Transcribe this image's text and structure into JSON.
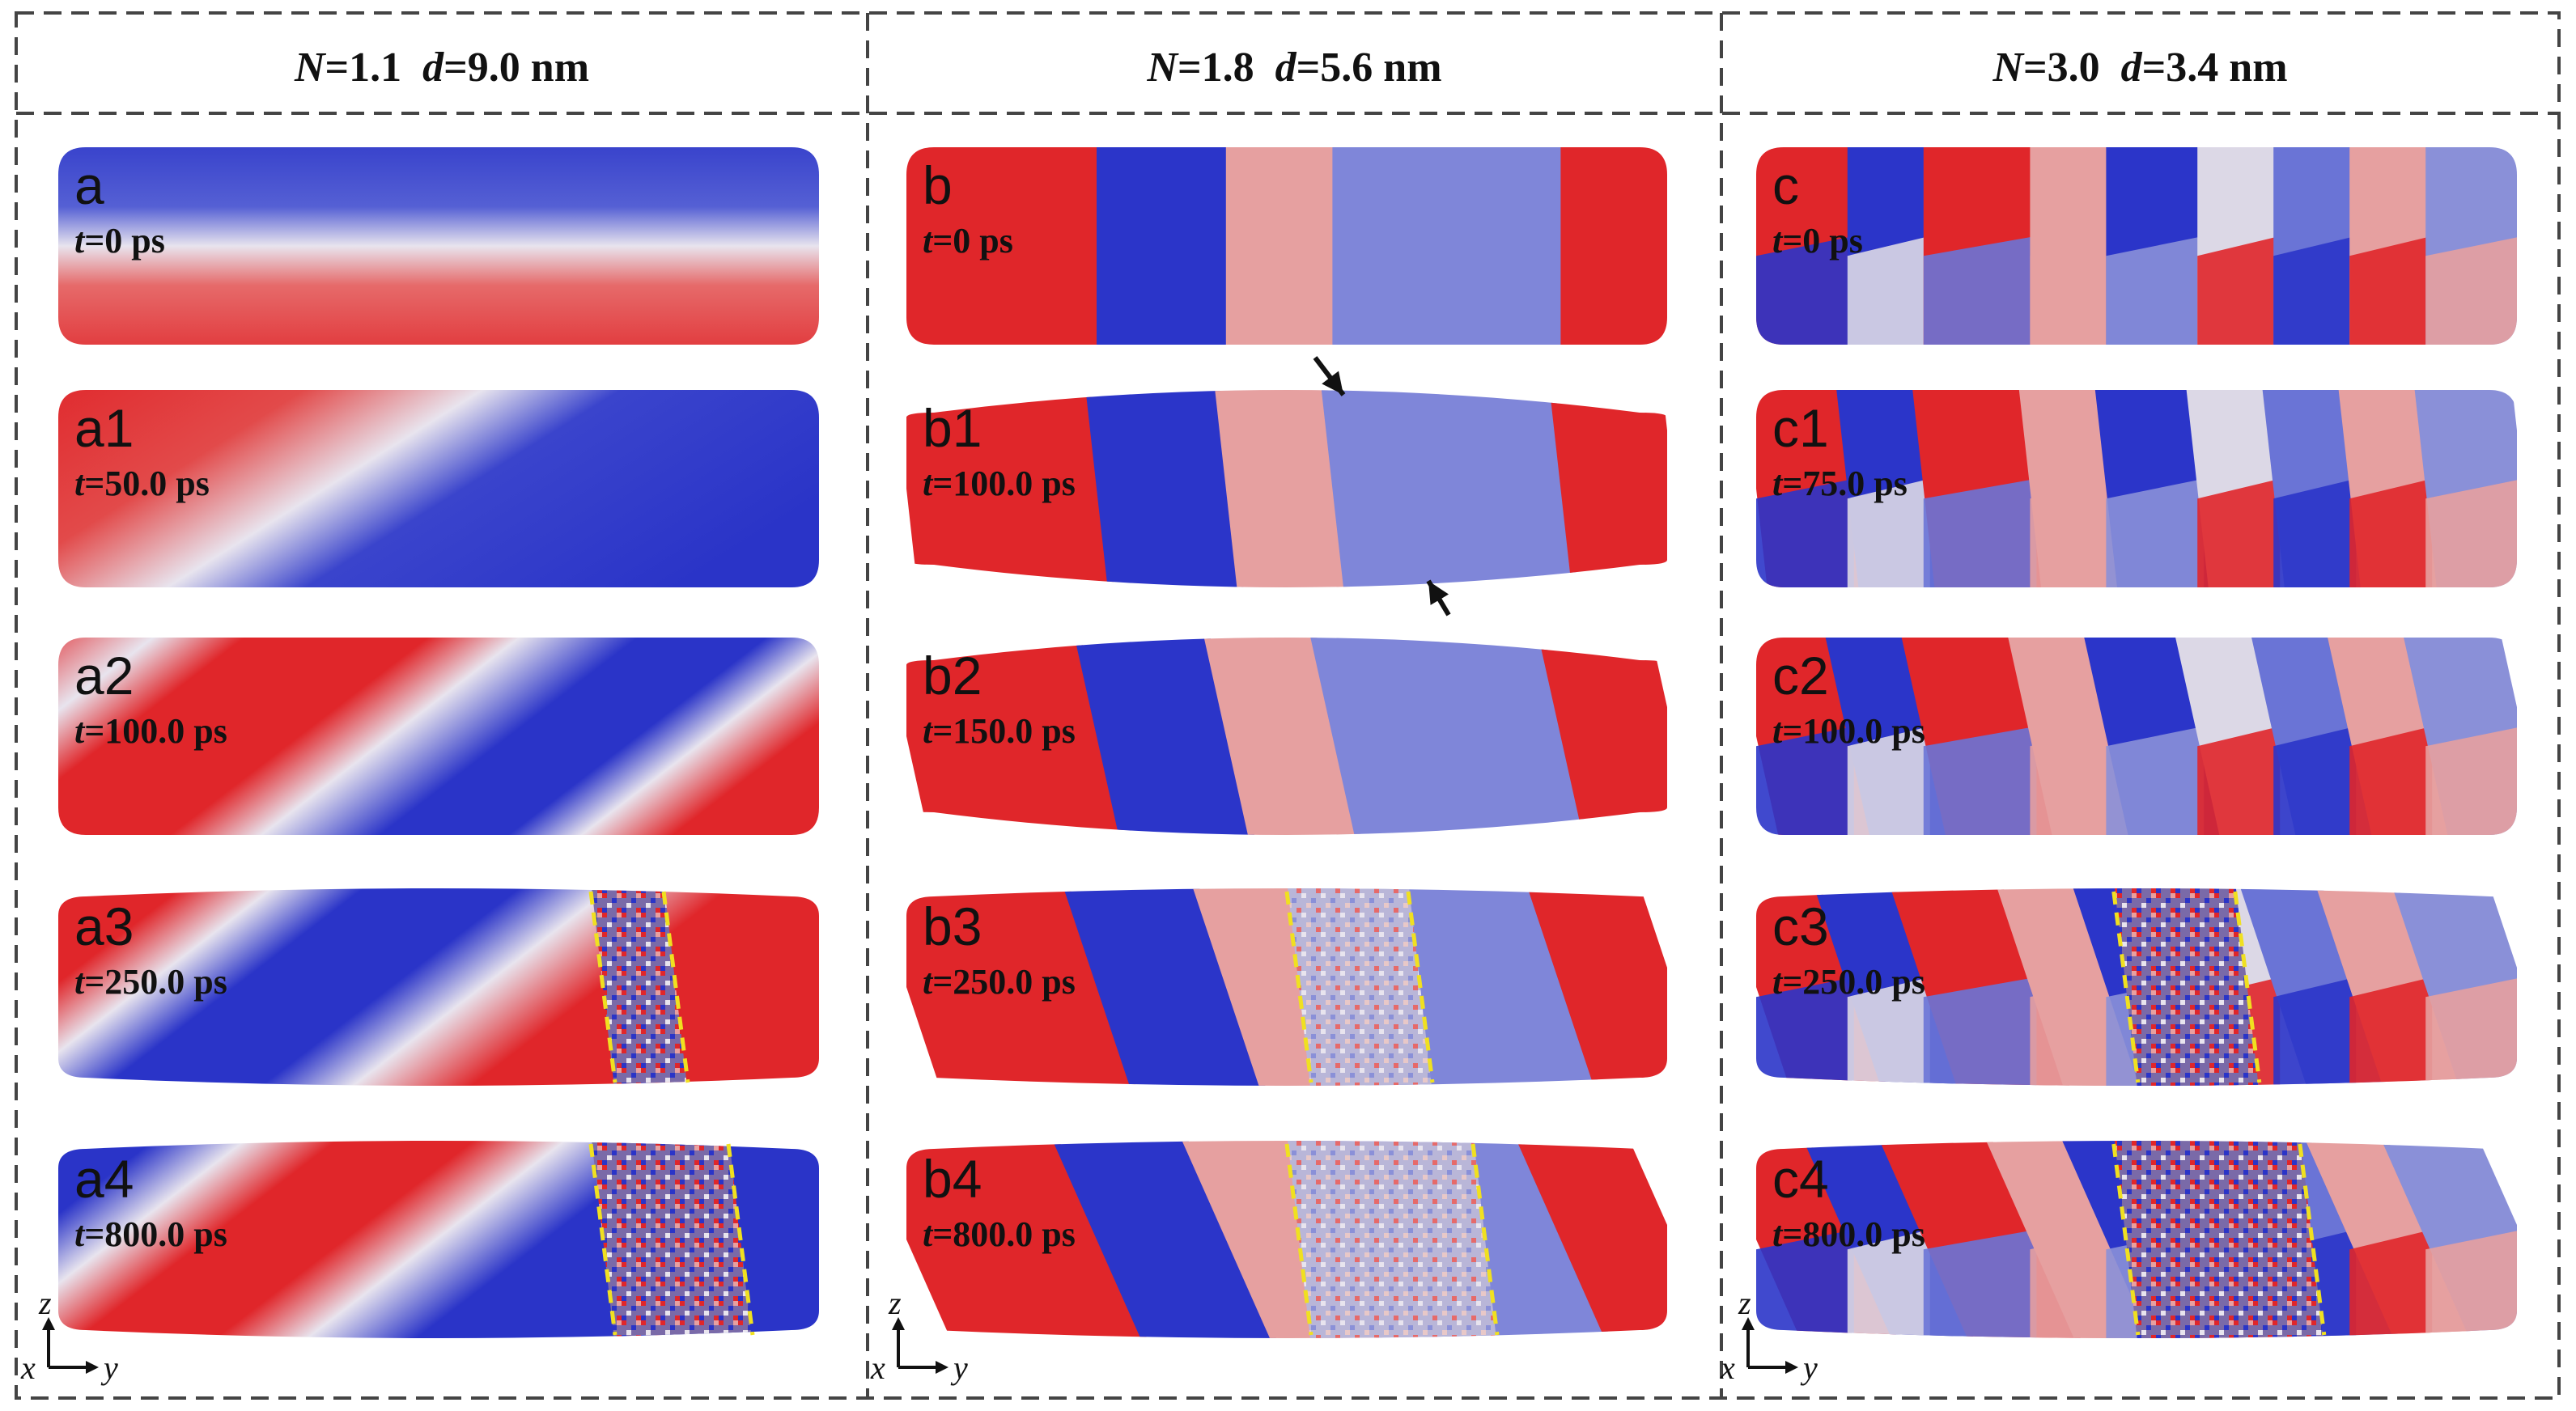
{
  "columns": [
    {
      "title": {
        "n_sym": "N",
        "n_val": "=1.1",
        "d_sym": "d",
        "d_val": "=9.0 nm"
      },
      "panels": [
        {
          "label": "a",
          "t_sym": "t",
          "t_val": "=0 ps"
        },
        {
          "label": "a1",
          "t_sym": "t",
          "t_val": "=50.0 ps"
        },
        {
          "label": "a2",
          "t_sym": "t",
          "t_val": "=100.0 ps"
        },
        {
          "label": "a3",
          "t_sym": "t",
          "t_val": "=250.0 ps"
        },
        {
          "label": "a4",
          "t_sym": "t",
          "t_val": "=800.0 ps"
        }
      ]
    },
    {
      "title": {
        "n_sym": "N",
        "n_val": "=1.8",
        "d_sym": "d",
        "d_val": "=5.6 nm"
      },
      "panels": [
        {
          "label": "b",
          "t_sym": "t",
          "t_val": "=0 ps"
        },
        {
          "label": "b1",
          "t_sym": "t",
          "t_val": "=100.0 ps"
        },
        {
          "label": "b2",
          "t_sym": "t",
          "t_val": "=150.0 ps"
        },
        {
          "label": "b3",
          "t_sym": "t",
          "t_val": "=250.0 ps"
        },
        {
          "label": "b4",
          "t_sym": "t",
          "t_val": "=800.0 ps"
        }
      ]
    },
    {
      "title": {
        "n_sym": "N",
        "n_val": "=3.0",
        "d_sym": "d",
        "d_val": "=3.4 nm"
      },
      "panels": [
        {
          "label": "c",
          "t_sym": "t",
          "t_val": "=0 ps"
        },
        {
          "label": "c1",
          "t_sym": "t",
          "t_val": "=75.0 ps"
        },
        {
          "label": "c2",
          "t_sym": "t",
          "t_val": "=100.0 ps"
        },
        {
          "label": "c3",
          "t_sym": "t",
          "t_val": "=250.0 ps"
        },
        {
          "label": "c4",
          "t_sym": "t",
          "t_val": "=800.0 ps"
        }
      ]
    }
  ],
  "axes": {
    "z": "z",
    "x": "x",
    "y": "y"
  },
  "colors": {
    "red": "#e0262a",
    "blue": "#2b35c9",
    "pink": "#e6a0a0",
    "light": "#dcd8e6",
    "border": "#444444",
    "guide": "#f0e020"
  }
}
